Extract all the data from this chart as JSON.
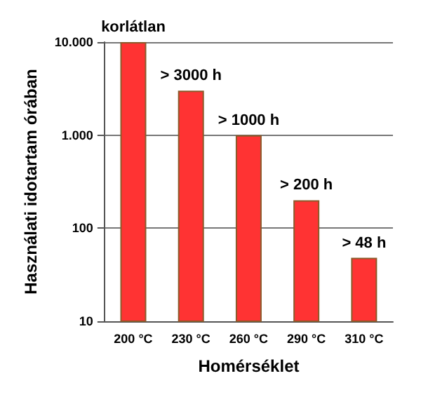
{
  "chart_data": {
    "type": "bar",
    "xlabel": "Homérséklet",
    "ylabel": "Használati idotartam órában",
    "categories": [
      "200 °C",
      "230 °C",
      "260 °C",
      "290 °C",
      "310 °C"
    ],
    "values": [
      10000,
      3000,
      1000,
      200,
      48
    ],
    "value_labels": [
      "korlátlan",
      "> 3000 h",
      "> 1000 h",
      "> 200 h",
      "> 48 h"
    ],
    "color": "#ff3333",
    "log": true,
    "ylim": [
      10,
      10000
    ],
    "yticks": [
      10,
      100,
      {
        "value": 1000,
        "label": "1.000"
      },
      {
        "value": 10000,
        "label": "10.000"
      }
    ],
    "grid": "y"
  }
}
